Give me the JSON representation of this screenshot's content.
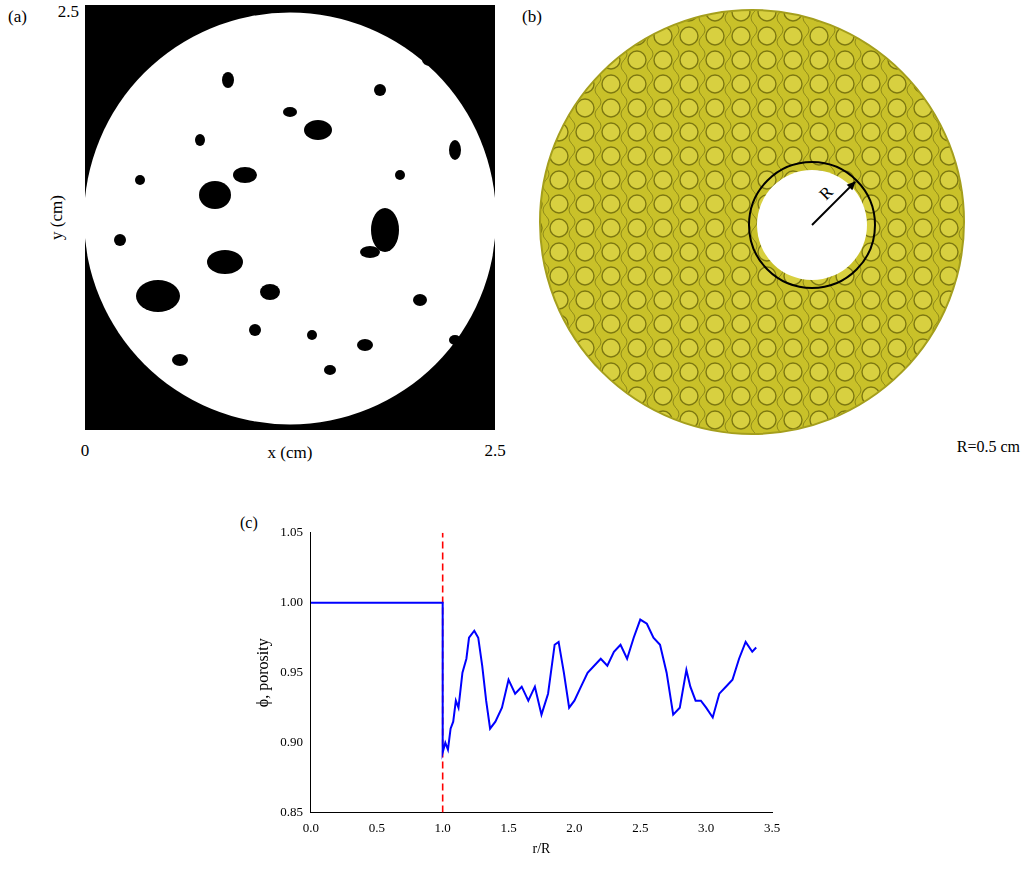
{
  "panel_a": {
    "letter": "(a)",
    "xlabel": "x (cm)",
    "ylabel": "y (cm)",
    "xlim": [
      0,
      2.5
    ],
    "ylim": [
      0,
      2.5
    ],
    "xticks": [
      0,
      2.5
    ],
    "yticks": [
      2.5
    ]
  },
  "panel_b": {
    "letter": "(b)",
    "radius_symbol": "R",
    "caption": "R=0.5 cm"
  },
  "chart_data": {
    "letter": "(c)",
    "type": "line",
    "xlabel": "r/R",
    "ylabel": "ϕ, porosity",
    "x": [
      0,
      1.0,
      1.0,
      1.02,
      1.04,
      1.06,
      1.08,
      1.1,
      1.12,
      1.15,
      1.18,
      1.2,
      1.24,
      1.27,
      1.3,
      1.33,
      1.36,
      1.4,
      1.45,
      1.5,
      1.55,
      1.6,
      1.65,
      1.7,
      1.75,
      1.8,
      1.85,
      1.88,
      1.92,
      1.96,
      2.0,
      2.05,
      2.1,
      2.15,
      2.2,
      2.25,
      2.3,
      2.35,
      2.4,
      2.45,
      2.5,
      2.55,
      2.6,
      2.65,
      2.7,
      2.75,
      2.8,
      2.85,
      2.88,
      2.92,
      2.96,
      3.0,
      3.05,
      3.1,
      3.15,
      3.2,
      3.25,
      3.3,
      3.35,
      3.38
    ],
    "series": [
      {
        "color": "#0000ff",
        "values": [
          1.0,
          1.0,
          0.893,
          0.9,
          0.895,
          0.91,
          0.915,
          0.93,
          0.925,
          0.95,
          0.96,
          0.975,
          0.98,
          0.975,
          0.955,
          0.93,
          0.91,
          0.915,
          0.925,
          0.945,
          0.935,
          0.94,
          0.93,
          0.94,
          0.92,
          0.935,
          0.97,
          0.972,
          0.95,
          0.925,
          0.93,
          0.94,
          0.95,
          0.955,
          0.96,
          0.955,
          0.965,
          0.97,
          0.96,
          0.975,
          0.988,
          0.985,
          0.975,
          0.97,
          0.95,
          0.92,
          0.925,
          0.952,
          0.94,
          0.93,
          0.93,
          0.925,
          0.918,
          0.935,
          0.94,
          0.945,
          0.96,
          0.972,
          0.965,
          0.968
        ]
      }
    ],
    "vline": {
      "x": 1.0,
      "color": "#ff0000",
      "line_style": "dashed"
    },
    "xlim": [
      0,
      3.5
    ],
    "xticks": [
      {
        "value": 0,
        "label": "0.0"
      },
      0.5,
      {
        "value": 1,
        "label": "1.0"
      },
      1.5,
      {
        "value": 2,
        "label": "2.0"
      },
      2.5,
      {
        "value": 3,
        "label": "3.0"
      },
      3.5
    ],
    "ylim": [
      0.85,
      1.05
    ],
    "yticks": [
      0.85,
      {
        "value": 0.9,
        "label": "0.90"
      },
      0.95,
      {
        "value": 1,
        "label": "1.00"
      },
      1.05
    ],
    "grid": false
  }
}
